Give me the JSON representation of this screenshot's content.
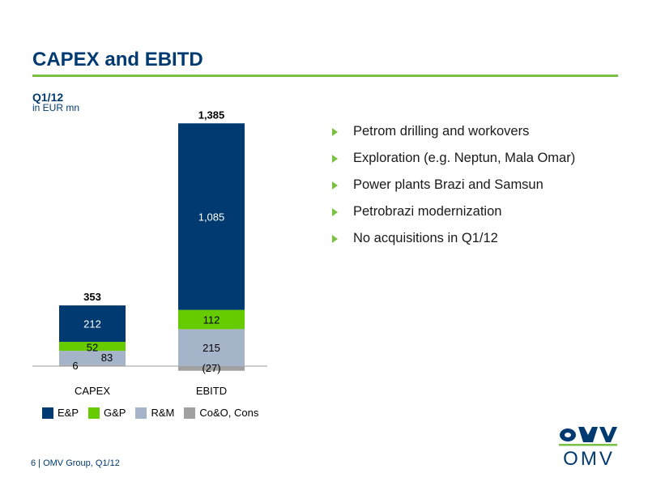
{
  "page": {
    "title": "CAPEX and EBITD",
    "period": "Q1/12",
    "unit": "in EUR mn",
    "footer": "6 | OMV Group, Q1/12",
    "logo_text": "OMV"
  },
  "colors": {
    "title": "#003a70",
    "rule": "#7ac143",
    "ep": "#003a70",
    "gp": "#66cc00",
    "rm": "#a5b4c8",
    "coo": "#a0a0a0"
  },
  "bullets": [
    "Petrom drilling and workovers",
    "Exploration (e.g. Neptun, Mala Omar)",
    "Power plants Brazi and Samsun",
    "Petrobrazi modernization",
    "No acquisitions in Q1/12"
  ],
  "chart_data": {
    "type": "bar",
    "stacked": true,
    "categories": [
      "CAPEX",
      "EBITD"
    ],
    "totals": [
      "353",
      "1,385"
    ],
    "series": [
      {
        "name": "E&P",
        "values": [
          212,
          1085
        ],
        "labels": [
          "212",
          "1,085"
        ],
        "color": "#003a70"
      },
      {
        "name": "G&P",
        "values": [
          52,
          112
        ],
        "labels": [
          "52",
          "112"
        ],
        "color": "#66cc00"
      },
      {
        "name": "R&M",
        "values": [
          83,
          215
        ],
        "labels": [
          "83",
          "215"
        ],
        "color": "#a5b4c8"
      },
      {
        "name": "Co&O, Cons",
        "values": [
          6,
          -27
        ],
        "labels": [
          "6",
          "(27)"
        ],
        "color": "#a0a0a0"
      }
    ],
    "ylim": [
      -27,
      1385
    ],
    "legend_position": "bottom-left",
    "grid": false
  }
}
